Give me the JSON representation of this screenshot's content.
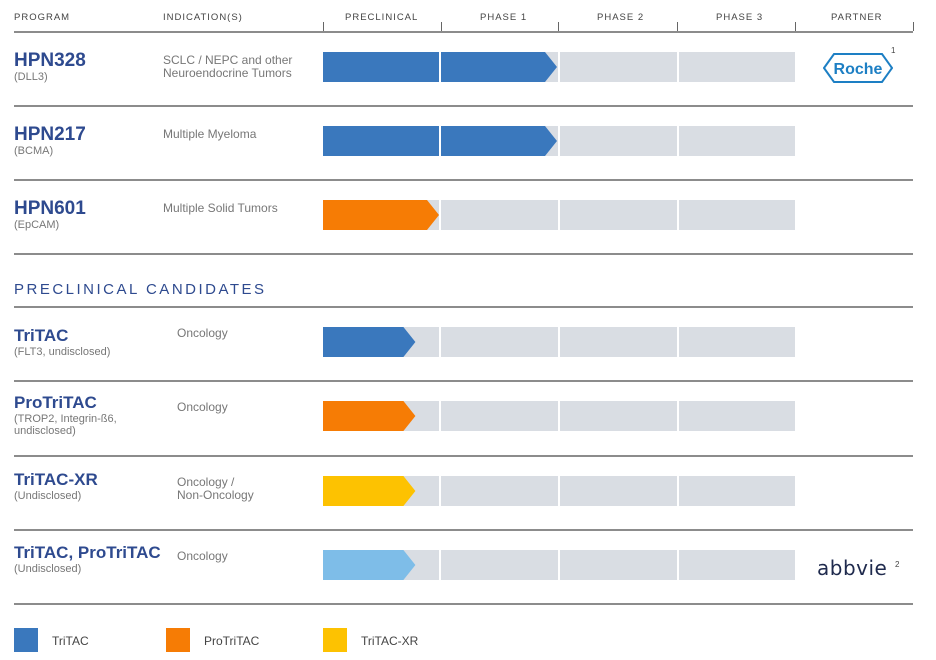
{
  "header": {
    "program": "PROGRAM",
    "indications": "INDICATION(S)",
    "phases": [
      "PRECLINICAL",
      "PHASE 1",
      "PHASE 2",
      "PHASE 3"
    ],
    "partner": "PARTNER"
  },
  "section_title": "PRECLINICAL CANDIDATES",
  "colors": {
    "TriTAC": "#3a78bd",
    "ProTriTAC": "#f67c05",
    "TriTAC-XR": "#fdc201",
    "TriTAC-light": "#7ebde8",
    "empty": "#d9dde3",
    "program": "#2e4a8f"
  },
  "chart_data": {
    "type": "pipeline",
    "title": "",
    "stages": [
      "PRECLINICAL",
      "PHASE 1",
      "PHASE 2",
      "PHASE 3"
    ],
    "programs": [
      {
        "name": "HPN328",
        "target": "(DLL3)",
        "indication": [
          "SCLC / NEPC and other",
          "Neuroendocrine Tumors"
        ],
        "platform": "TriTAC",
        "progress_stages": 2.0,
        "partner": "Roche",
        "partner_note": "1",
        "group": "clinical"
      },
      {
        "name": "HPN217",
        "target": "(BCMA)",
        "indication": [
          "Multiple Myeloma"
        ],
        "platform": "TriTAC",
        "progress_stages": 2.0,
        "partner": "",
        "partner_note": "",
        "group": "clinical"
      },
      {
        "name": "HPN601",
        "target": "(EpCAM)",
        "indication": [
          "Multiple Solid Tumors"
        ],
        "platform": "ProTriTAC",
        "progress_stages": 1.0,
        "partner": "",
        "partner_note": "",
        "group": "clinical"
      },
      {
        "name": "TriTAC",
        "target": "(FLT3, undisclosed)",
        "indication": [
          "Oncology"
        ],
        "platform": "TriTAC",
        "progress_stages": 0.8,
        "partner": "",
        "partner_note": "",
        "group": "preclinical"
      },
      {
        "name": "ProTriTAC",
        "target": "(TROP2, Integrin-ß6, undisclosed)",
        "indication": [
          "Oncology"
        ],
        "platform": "ProTriTAC",
        "progress_stages": 0.8,
        "partner": "",
        "partner_note": "",
        "group": "preclinical"
      },
      {
        "name": "TriTAC-XR",
        "target": "(Undisclosed)",
        "indication": [
          "Oncology /",
          "Non-Oncology"
        ],
        "platform": "TriTAC-XR",
        "progress_stages": 0.8,
        "partner": "",
        "partner_note": "",
        "group": "preclinical"
      },
      {
        "name": "TriTAC, ProTriTAC",
        "target": "(Undisclosed)",
        "indication": [
          "Oncology"
        ],
        "platform": "TriTAC-light",
        "progress_stages": 0.8,
        "partner": "abbvie",
        "partner_note": "2",
        "group": "preclinical"
      }
    ],
    "legend": [
      {
        "label": "TriTAC",
        "color": "#3a78bd"
      },
      {
        "label": "ProTriTAC",
        "color": "#f67c05"
      },
      {
        "label": "TriTAC-XR",
        "color": "#fdc201"
      }
    ]
  }
}
